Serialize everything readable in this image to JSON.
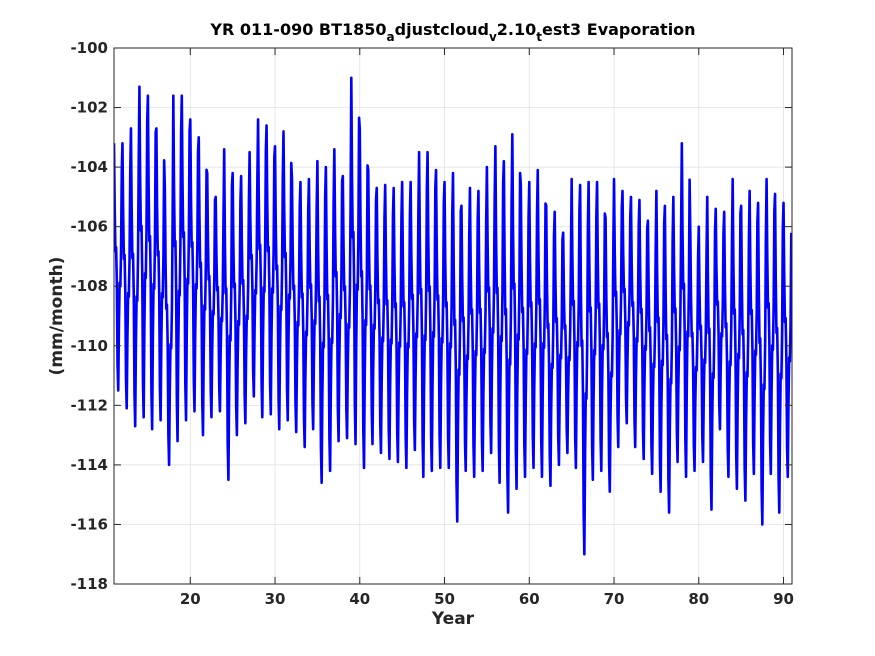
{
  "chart_data": {
    "type": "line",
    "title_parts": {
      "p1": "YR 011-090 BT1850",
      "s1": "a",
      "p2": "djustcloud",
      "s2": "v",
      "p3": "2.10",
      "s3": "t",
      "p4": "est3 Evaporation"
    },
    "xlabel": "Year",
    "ylabel": "(mm/month)",
    "xlim": [
      11,
      91
    ],
    "ylim": [
      -118,
      -100
    ],
    "xticks": [
      20,
      30,
      40,
      50,
      60,
      70,
      80,
      90
    ],
    "yticks": [
      -118,
      -116,
      -114,
      -112,
      -110,
      -108,
      -106,
      -104,
      -102,
      -100
    ],
    "grid": true,
    "line_color": "#0000ff",
    "series": [
      {
        "seasonal_peaks": [
          [
            11,
            -103.2
          ],
          [
            12,
            -103.2
          ],
          [
            13,
            -102.7
          ],
          [
            14,
            -101.3
          ],
          [
            15,
            -101.6
          ],
          [
            16,
            -102.7
          ],
          [
            17,
            -104.7
          ],
          [
            18,
            -101.6
          ],
          [
            19,
            -101.6
          ],
          [
            20,
            -102.4
          ],
          [
            21,
            -103.0
          ],
          [
            22,
            -104.2
          ],
          [
            23,
            -105.0
          ],
          [
            24,
            -103.4
          ],
          [
            25,
            -104.2
          ],
          [
            26,
            -104.3
          ],
          [
            27,
            -103.5
          ],
          [
            28,
            -102.4
          ],
          [
            29,
            -102.6
          ],
          [
            30,
            -103.3
          ],
          [
            31,
            -102.8
          ],
          [
            32,
            -104.4
          ],
          [
            33,
            -104.5
          ],
          [
            34,
            -104.4
          ],
          [
            35,
            -103.8
          ],
          [
            36,
            -104.0
          ],
          [
            37,
            -103.4
          ],
          [
            38,
            -104.3
          ],
          [
            39,
            -101.0
          ],
          [
            40,
            -102.7
          ],
          [
            41,
            -104.1
          ],
          [
            42,
            -104.7
          ],
          [
            43,
            -104.6
          ],
          [
            44,
            -104.7
          ],
          [
            45,
            -104.5
          ],
          [
            46,
            -104.5
          ],
          [
            47,
            -103.5
          ],
          [
            48,
            -103.5
          ],
          [
            49,
            -104.1
          ],
          [
            50,
            -104.5
          ],
          [
            51,
            -104.2
          ],
          [
            52,
            -105.3
          ],
          [
            53,
            -104.7
          ],
          [
            54,
            -104.8
          ],
          [
            55,
            -104.0
          ],
          [
            56,
            -103.3
          ],
          [
            57,
            -103.8
          ],
          [
            58,
            -102.9
          ],
          [
            59,
            -104.6
          ],
          [
            60,
            -104.5
          ],
          [
            61,
            -104.1
          ],
          [
            62,
            -105.3
          ],
          [
            63,
            -105.5
          ],
          [
            64,
            -106.2
          ],
          [
            65,
            -104.4
          ],
          [
            66,
            -104.6
          ],
          [
            67,
            -104.5
          ],
          [
            68,
            -104.5
          ],
          [
            69,
            -105.7
          ],
          [
            70,
            -104.4
          ],
          [
            71,
            -104.8
          ],
          [
            72,
            -105.0
          ],
          [
            73,
            -105.1
          ],
          [
            74,
            -105.8
          ],
          [
            75,
            -104.8
          ],
          [
            76,
            -105.3
          ],
          [
            77,
            -105.0
          ],
          [
            78,
            -103.2
          ],
          [
            79,
            -106.2
          ],
          [
            80,
            -106.0
          ],
          [
            81,
            -105.0
          ],
          [
            82,
            -105.4
          ],
          [
            83,
            -105.5
          ],
          [
            84,
            -104.4
          ],
          [
            85,
            -105.3
          ],
          [
            86,
            -104.8
          ],
          [
            87,
            -105.2
          ],
          [
            88,
            -104.4
          ],
          [
            89,
            -104.9
          ],
          [
            90,
            -105.2
          ]
        ],
        "seasonal_troughs": [
          [
            11,
            -111.5
          ],
          [
            12,
            -112.1
          ],
          [
            13,
            -112.7
          ],
          [
            14,
            -112.4
          ],
          [
            15,
            -112.8
          ],
          [
            16,
            -112.5
          ],
          [
            17,
            -114.0
          ],
          [
            18,
            -113.2
          ],
          [
            19,
            -112.5
          ],
          [
            20,
            -112.2
          ],
          [
            21,
            -113.0
          ],
          [
            22,
            -112.4
          ],
          [
            23,
            -112.2
          ],
          [
            24,
            -114.5
          ],
          [
            25,
            -113.0
          ],
          [
            26,
            -112.6
          ],
          [
            27,
            -111.7
          ],
          [
            28,
            -112.4
          ],
          [
            29,
            -112.3
          ],
          [
            30,
            -112.8
          ],
          [
            31,
            -112.5
          ],
          [
            32,
            -112.9
          ],
          [
            33,
            -113.4
          ],
          [
            34,
            -112.8
          ],
          [
            35,
            -114.6
          ],
          [
            36,
            -114.2
          ],
          [
            37,
            -113.2
          ],
          [
            38,
            -113.1
          ],
          [
            39,
            -113.3
          ],
          [
            40,
            -114.1
          ],
          [
            41,
            -113.3
          ],
          [
            42,
            -113.6
          ],
          [
            43,
            -113.8
          ],
          [
            44,
            -113.9
          ],
          [
            45,
            -114.1
          ],
          [
            46,
            -113.5
          ],
          [
            47,
            -114.4
          ],
          [
            48,
            -114.2
          ],
          [
            49,
            -114.1
          ],
          [
            50,
            -114.1
          ],
          [
            51,
            -115.9
          ],
          [
            52,
            -114.2
          ],
          [
            53,
            -114.4
          ],
          [
            54,
            -114.2
          ],
          [
            55,
            -113.6
          ],
          [
            56,
            -114.6
          ],
          [
            57,
            -115.6
          ],
          [
            58,
            -114.8
          ],
          [
            59,
            -114.4
          ],
          [
            60,
            -114.1
          ],
          [
            61,
            -114.4
          ],
          [
            62,
            -114.7
          ],
          [
            63,
            -114.0
          ],
          [
            64,
            -113.6
          ],
          [
            65,
            -114.1
          ],
          [
            66,
            -117.0
          ],
          [
            67,
            -114.5
          ],
          [
            68,
            -114.2
          ],
          [
            69,
            -114.9
          ],
          [
            70,
            -113.4
          ],
          [
            71,
            -112.6
          ],
          [
            72,
            -113.4
          ],
          [
            73,
            -113.8
          ],
          [
            74,
            -114.3
          ],
          [
            75,
            -114.9
          ],
          [
            76,
            -115.6
          ],
          [
            77,
            -113.9
          ],
          [
            78,
            -114.4
          ],
          [
            79,
            -114.2
          ],
          [
            80,
            -113.9
          ],
          [
            81,
            -115.5
          ],
          [
            82,
            -112.8
          ],
          [
            83,
            -114.4
          ],
          [
            84,
            -114.8
          ],
          [
            85,
            -115.2
          ],
          [
            86,
            -114.3
          ],
          [
            87,
            -116.0
          ],
          [
            88,
            -114.3
          ],
          [
            89,
            -115.6
          ],
          [
            90,
            -114.4
          ]
        ]
      }
    ]
  }
}
